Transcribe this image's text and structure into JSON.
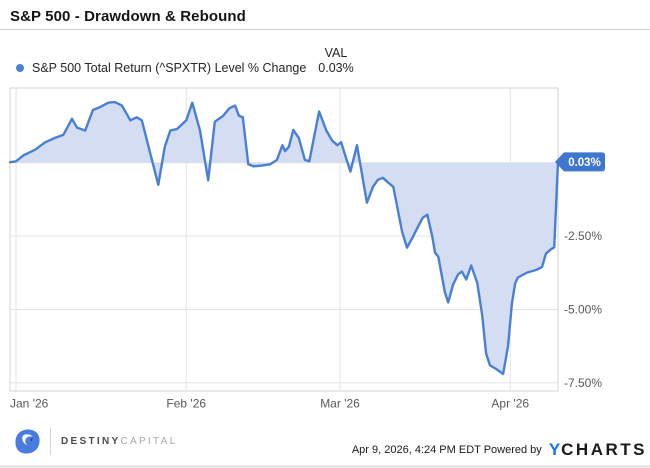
{
  "header": {
    "title": "S&P 500 - Drawdown & Rebound"
  },
  "legend": {
    "series_label": "S&P 500 Total Return (^SPXTR) Level % Change",
    "val_header": "VAL",
    "val_value": "0.03%",
    "dot_color": "#4a80d4"
  },
  "chart_data": {
    "type": "area",
    "title": "S&P 500 - Drawdown & Rebound",
    "series": [
      {
        "name": "S&P 500 Total Return (^SPXTR) Level % Change"
      }
    ],
    "x_unit": "days since Jan 1 '26",
    "x_range": [
      -1.1,
      98.7
    ],
    "y_range_pct": [
      2.55,
      -7.78
    ],
    "baseline": 0,
    "grid": true,
    "legend_position": "top-left",
    "x_ticks": [
      {
        "day": 0,
        "label": "Jan '26"
      },
      {
        "day": 31,
        "label": "Feb '26"
      },
      {
        "day": 59,
        "label": "Mar '26"
      },
      {
        "day": 90,
        "label": "Apr '26"
      }
    ],
    "y_ticks": [
      {
        "value": -2.5,
        "label": "-2.50%"
      },
      {
        "value": -5.0,
        "label": "-5.00%"
      },
      {
        "value": -7.5,
        "label": "-7.50%"
      }
    ],
    "last_value_badge": {
      "value": 0.03,
      "label": "0.03%"
    },
    "points": [
      [
        -1.1,
        0.02
      ],
      [
        0,
        0.05
      ],
      [
        1.3,
        0.25
      ],
      [
        3.5,
        0.45
      ],
      [
        5.3,
        0.7
      ],
      [
        7.1,
        0.85
      ],
      [
        8.6,
        0.95
      ],
      [
        10.2,
        1.5
      ],
      [
        11.1,
        1.2
      ],
      [
        12.6,
        1.1
      ],
      [
        14,
        1.8
      ],
      [
        15.3,
        1.9
      ],
      [
        16.8,
        2.05
      ],
      [
        18,
        2.07
      ],
      [
        19.3,
        1.95
      ],
      [
        20.8,
        1.45
      ],
      [
        22,
        1.55
      ],
      [
        22.9,
        1.45
      ],
      [
        25.9,
        -0.75
      ],
      [
        27.1,
        0.55
      ],
      [
        28.1,
        1.1
      ],
      [
        29.3,
        1.15
      ],
      [
        31,
        1.45
      ],
      [
        32.1,
        2.05
      ],
      [
        33.5,
        1.1
      ],
      [
        35,
        -0.6
      ],
      [
        36.2,
        1.4
      ],
      [
        37.7,
        1.6
      ],
      [
        38.8,
        1.85
      ],
      [
        39.9,
        1.95
      ],
      [
        40.6,
        1.6
      ],
      [
        41.3,
        1.55
      ],
      [
        42.3,
        -0.05
      ],
      [
        43.2,
        -0.12
      ],
      [
        44.6,
        -0.1
      ],
      [
        46.3,
        -0.05
      ],
      [
        47.5,
        0.1
      ],
      [
        48.5,
        0.6
      ],
      [
        49,
        0.4
      ],
      [
        49.7,
        0.55
      ],
      [
        50.5,
        1.12
      ],
      [
        51.5,
        0.85
      ],
      [
        52.6,
        0.1
      ],
      [
        53.4,
        0.05
      ],
      [
        55.2,
        1.75
      ],
      [
        56.5,
        1.1
      ],
      [
        57.6,
        0.75
      ],
      [
        58.5,
        0.6
      ],
      [
        59.2,
        0.7
      ],
      [
        60.9,
        -0.3
      ],
      [
        62.1,
        0.6
      ],
      [
        63.9,
        -1.36
      ],
      [
        65,
        -0.82
      ],
      [
        65.9,
        -0.58
      ],
      [
        66.8,
        -0.51
      ],
      [
        67.8,
        -0.68
      ],
      [
        68.7,
        -0.82
      ],
      [
        70.3,
        -2.35
      ],
      [
        71.2,
        -2.89
      ],
      [
        72.3,
        -2.52
      ],
      [
        73.2,
        -2.18
      ],
      [
        74.1,
        -1.87
      ],
      [
        74.9,
        -1.77
      ],
      [
        75.8,
        -2.52
      ],
      [
        76.3,
        -3.06
      ],
      [
        76.9,
        -3.2
      ],
      [
        78.1,
        -4.42
      ],
      [
        78.7,
        -4.76
      ],
      [
        79.6,
        -4.15
      ],
      [
        80.5,
        -3.8
      ],
      [
        81.2,
        -3.71
      ],
      [
        82,
        -3.98
      ],
      [
        82.9,
        -3.5
      ],
      [
        84,
        -4.1
      ],
      [
        84.9,
        -5.2
      ],
      [
        85.6,
        -6.5
      ],
      [
        86.3,
        -6.9
      ],
      [
        87.6,
        -7.05
      ],
      [
        88.7,
        -7.2
      ],
      [
        89.6,
        -6.26
      ],
      [
        90.3,
        -4.8
      ],
      [
        90.9,
        -4.1
      ],
      [
        91.4,
        -3.91
      ],
      [
        93.1,
        -3.74
      ],
      [
        94.9,
        -3.64
      ],
      [
        95.8,
        -3.55
      ],
      [
        96.5,
        -3.1
      ],
      [
        97.4,
        -2.95
      ],
      [
        98,
        -2.88
      ],
      [
        98.7,
        0.03
      ]
    ],
    "colors": {
      "line": "#4a80d4",
      "fill": "#d4ddf1",
      "badge": "#3f76d0",
      "badge_text": "#ffffff",
      "grid": "#e3e3e3",
      "border": "#d6d6d6",
      "axis_text": "#595959"
    }
  },
  "footer": {
    "brand": {
      "name_primary": "DESTINY",
      "name_secondary": "CAPITAL"
    },
    "timestamp": "Apr 9, 2026, 4:24 PM EDT Powered by",
    "ycharts_y": "Y",
    "ycharts_rest": "CHARTS"
  }
}
